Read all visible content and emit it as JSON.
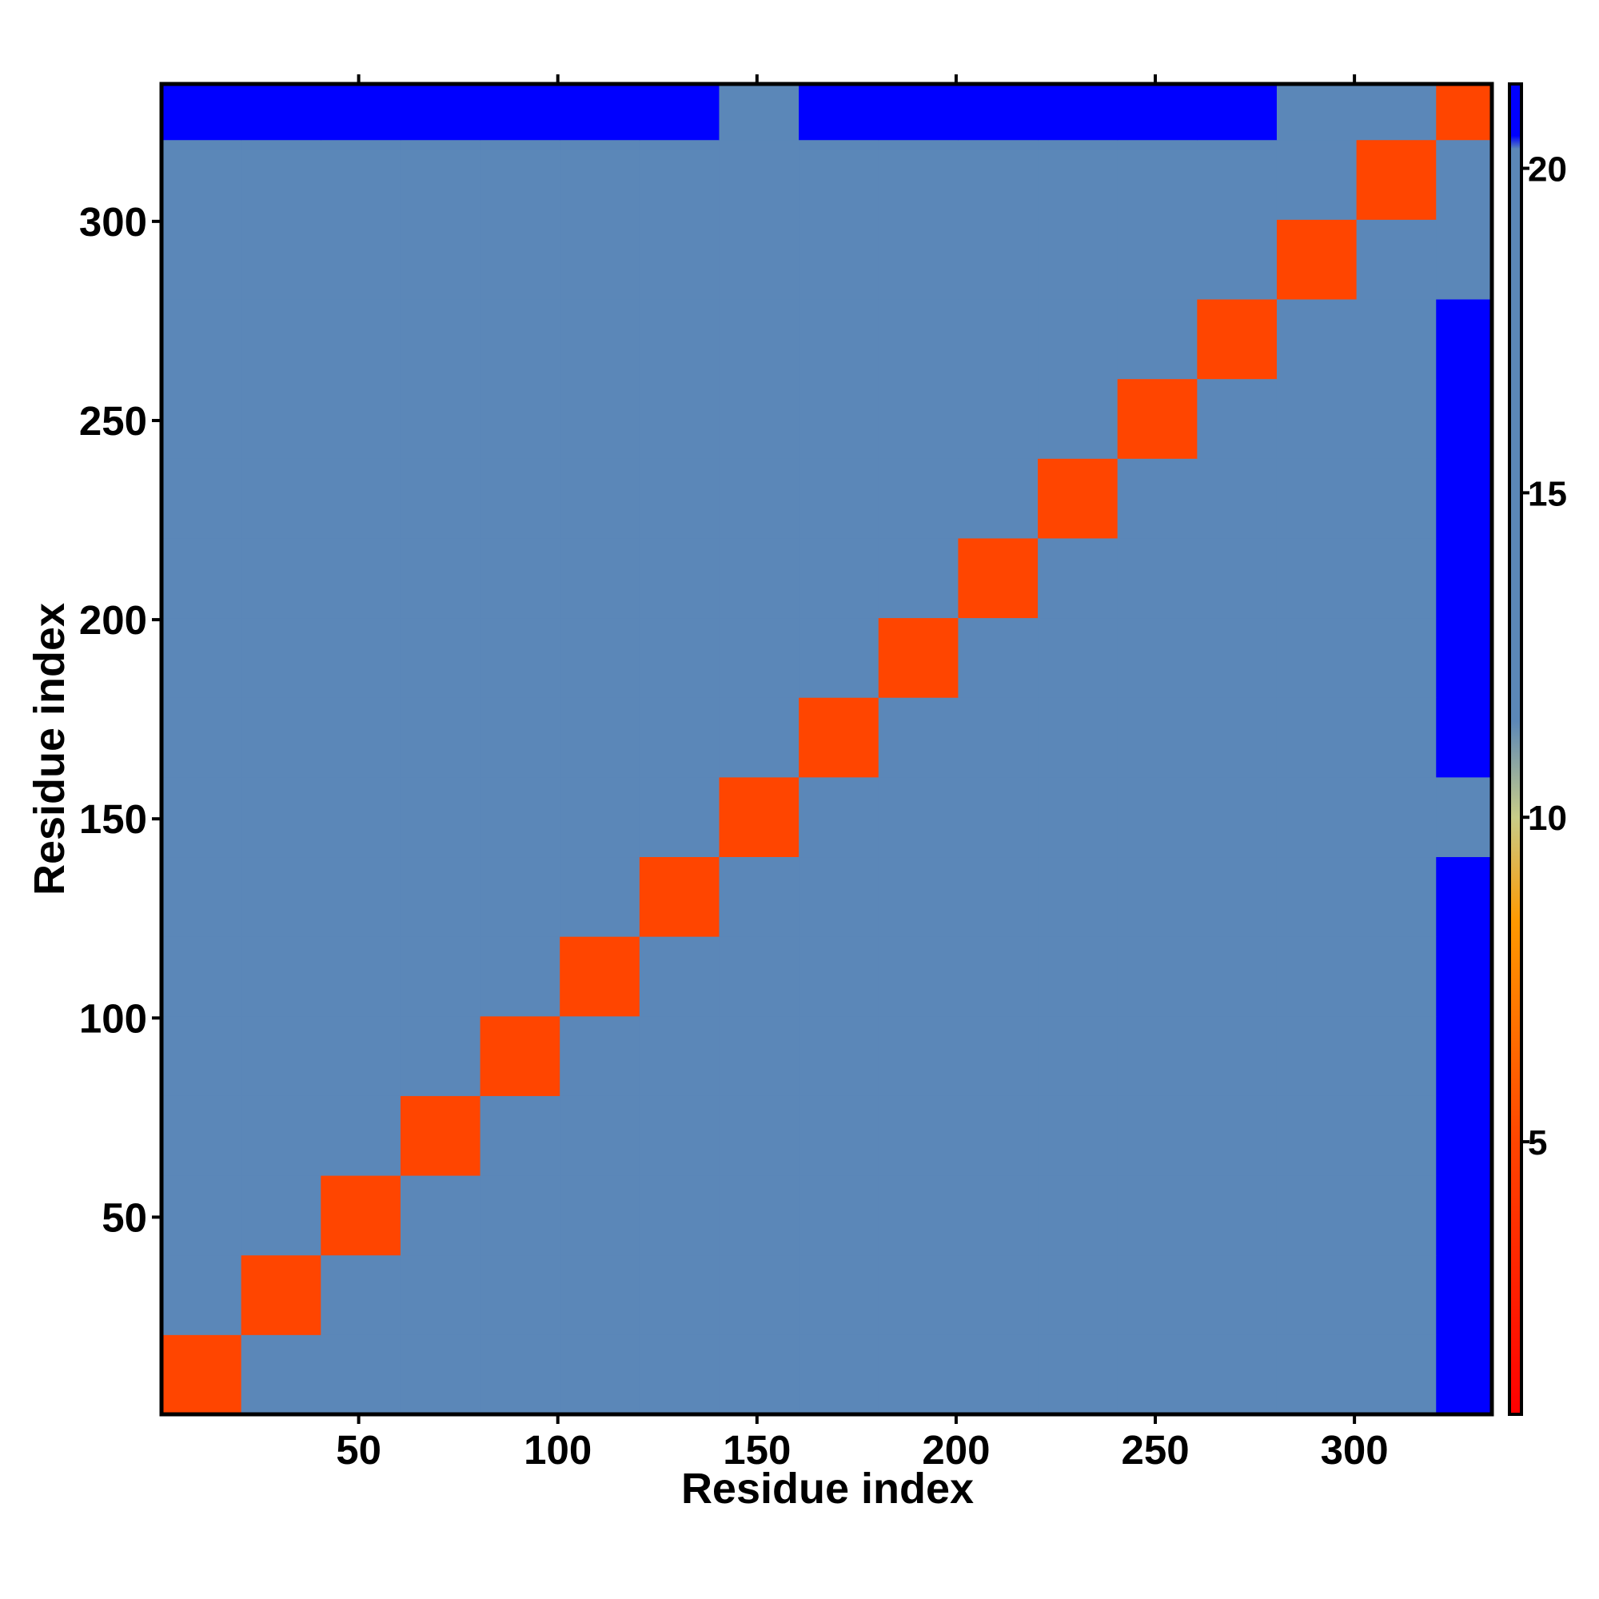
{
  "chart_data": {
    "type": "heatmap",
    "x_label": "Residue index",
    "y_label": "Residue index",
    "xbins": [
      0.5,
      20.5,
      40.5,
      60.5,
      80.5,
      100.5,
      120.5,
      140.5,
      160.5,
      180.5,
      200.5,
      220.5,
      240.5,
      260.5,
      280.5,
      300.5,
      320.5,
      334.5
    ],
    "ybins": [
      0.5,
      20.5,
      40.5,
      60.5,
      80.5,
      100.5,
      120.5,
      140.5,
      160.5,
      180.5,
      200.5,
      220.5,
      240.5,
      260.5,
      280.5,
      300.5,
      320.5,
      334.5
    ],
    "z": [
      [
        5,
        12,
        13,
        12,
        17,
        17,
        17,
        17,
        17,
        17,
        17,
        17,
        17,
        17,
        17,
        13,
        21
      ],
      [
        12,
        5,
        12,
        17,
        17,
        17,
        17,
        17,
        17,
        17,
        17,
        17,
        17,
        17,
        17,
        17,
        21
      ],
      [
        13,
        12,
        5,
        12,
        17,
        17,
        17,
        17,
        17,
        17,
        17,
        17,
        17,
        19,
        17,
        17,
        21
      ],
      [
        12,
        17,
        12,
        5,
        12,
        13,
        17,
        17,
        17,
        17,
        17,
        17,
        17,
        17,
        17,
        17,
        21
      ],
      [
        17,
        17,
        17,
        12,
        5,
        12,
        14,
        17,
        17,
        17,
        17,
        17,
        17,
        20,
        17,
        17,
        21
      ],
      [
        17,
        17,
        17,
        13,
        12,
        5,
        12,
        17,
        17,
        17,
        17,
        17,
        17,
        17,
        17,
        17,
        21
      ],
      [
        17,
        17,
        17,
        17,
        14,
        12,
        5,
        12,
        14,
        17,
        17,
        20,
        17,
        17,
        17,
        17,
        21
      ],
      [
        17,
        17,
        17,
        17,
        17,
        17,
        12,
        5,
        12,
        17,
        19,
        17,
        14,
        17,
        17,
        17,
        16
      ],
      [
        17,
        17,
        17,
        17,
        17,
        17,
        14,
        12,
        5,
        12,
        13,
        17,
        17,
        17,
        18,
        17,
        21
      ],
      [
        17,
        17,
        17,
        17,
        17,
        17,
        17,
        17,
        12,
        5,
        12,
        13,
        17,
        15,
        17,
        17,
        21
      ],
      [
        17,
        17,
        17,
        17,
        17,
        17,
        17,
        19,
        13,
        12,
        5,
        12,
        13,
        17,
        17,
        17,
        21
      ],
      [
        17,
        17,
        17,
        17,
        17,
        17,
        20,
        17,
        17,
        13,
        12,
        5,
        12,
        17,
        17,
        17,
        21
      ],
      [
        17,
        17,
        17,
        17,
        17,
        17,
        17,
        14,
        17,
        17,
        13,
        12,
        5,
        12,
        13,
        17,
        21
      ],
      [
        17,
        17,
        19,
        17,
        20,
        17,
        17,
        17,
        17,
        15,
        17,
        17,
        12,
        5,
        12,
        14,
        21
      ],
      [
        17,
        17,
        17,
        17,
        17,
        17,
        17,
        17,
        18,
        17,
        17,
        17,
        13,
        12,
        5,
        12,
        20
      ],
      [
        13,
        17,
        17,
        17,
        17,
        17,
        17,
        17,
        17,
        17,
        17,
        17,
        17,
        14,
        12,
        5,
        12
      ],
      [
        21,
        21,
        21,
        21,
        21,
        21,
        21,
        16,
        21,
        21,
        21,
        21,
        21,
        21,
        20,
        12,
        5
      ]
    ],
    "xlim": [
      0.5,
      334.5
    ],
    "ylim": [
      0.5,
      334.5
    ],
    "xticks": [
      50,
      100,
      150,
      200,
      250,
      300
    ],
    "yticks": [
      50,
      100,
      150,
      200,
      250,
      300
    ],
    "clim": [
      0.8,
      21.3
    ],
    "cticks": [
      5,
      10,
      15,
      20
    ],
    "colorscale": [
      [
        0.8,
        "#ff0000"
      ],
      [
        5,
        "#ff4500"
      ],
      [
        8.4,
        "#ff9900"
      ],
      [
        10,
        "#c8cc88"
      ],
      [
        11.5,
        "#5b87b8"
      ],
      [
        20.3,
        "#5b87b8"
      ],
      [
        20.5,
        "#0000ff"
      ],
      [
        21.3,
        "#0000ff"
      ]
    ]
  }
}
